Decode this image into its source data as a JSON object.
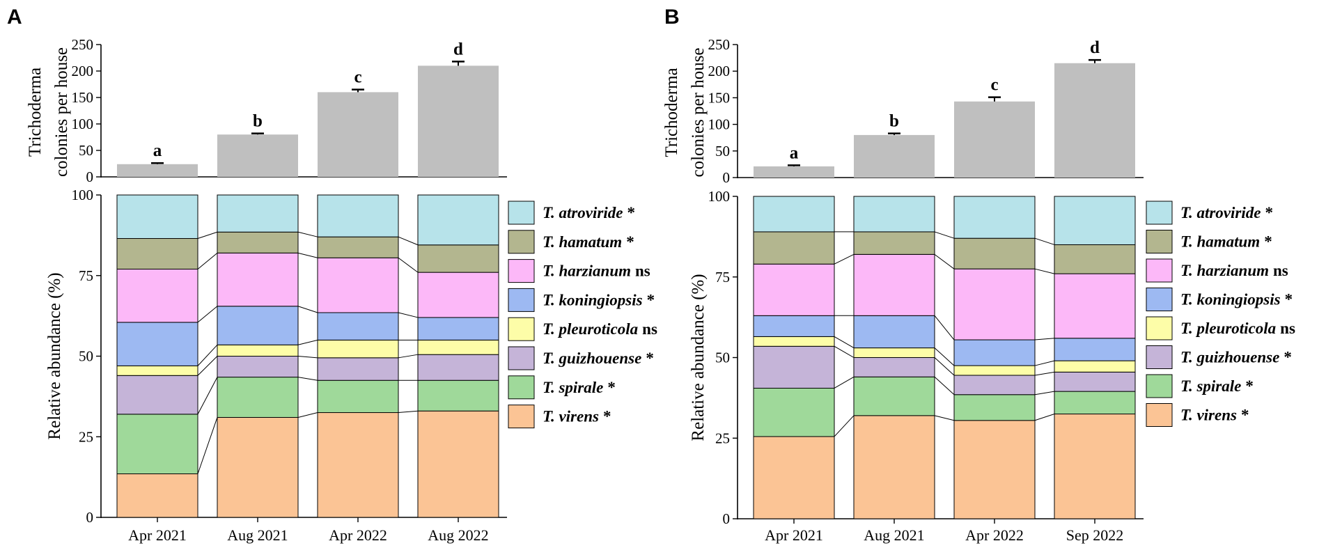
{
  "colors": {
    "bar": "#bfbfbf",
    "T. atroviride": "#b7e3ea",
    "T. hamatum": "#b3b68f",
    "T. harzianum": "#fcb8f8",
    "T. koningiopsis": "#9db9f2",
    "T. pleuroticola": "#fdfda8",
    "T. guizhouense": "#c5b4d8",
    "T. spirale": "#9fd99a",
    "T. virens": "#fbc495"
  },
  "legend": [
    {
      "name": "T. atroviride",
      "sig": "*"
    },
    {
      "name": "T. hamatum",
      "sig": "*"
    },
    {
      "name": "T. harzianum",
      "sig": "ns"
    },
    {
      "name": "T. koningiopsis",
      "sig": "*"
    },
    {
      "name": "T. pleuroticola",
      "sig": "ns"
    },
    {
      "name": "T. guizhouense",
      "sig": "*"
    },
    {
      "name": "T. spirale",
      "sig": "*"
    },
    {
      "name": "T. virens",
      "sig": "*"
    }
  ],
  "chart_data": [
    {
      "panel": "A",
      "type": "bar",
      "ylabel": [
        "Trichoderma",
        "colonies per house"
      ],
      "ylim": [
        0,
        250
      ],
      "yticks": [
        0,
        50,
        100,
        150,
        200,
        250
      ],
      "categories": [
        "Apr 2021",
        "Aug 2021",
        "Apr 2022",
        "Aug 2022"
      ],
      "values": [
        24,
        80,
        160,
        210
      ],
      "errors": [
        2,
        2,
        5,
        8
      ],
      "letters": [
        "a",
        "b",
        "c",
        "d"
      ]
    },
    {
      "panel": "A",
      "type": "stacked-bar",
      "ylabel": "Relative abundance (%)",
      "ylim": [
        0,
        100
      ],
      "yticks": [
        0,
        25,
        50,
        75,
        100
      ],
      "categories": [
        "Apr 2021",
        "Aug 2021",
        "Apr 2022",
        "Aug 2022"
      ],
      "series": [
        {
          "name": "T. virens",
          "values": [
            13.5,
            31,
            32.5,
            33
          ]
        },
        {
          "name": "T. spirale",
          "values": [
            18.5,
            12.5,
            10,
            9.5
          ]
        },
        {
          "name": "T. guizhouense",
          "values": [
            12,
            6.5,
            7,
            8
          ]
        },
        {
          "name": "T. pleuroticola",
          "values": [
            3,
            3.5,
            5.5,
            4.5
          ]
        },
        {
          "name": "T. koningiopsis",
          "values": [
            13.5,
            12,
            8.5,
            7
          ]
        },
        {
          "name": "T. harzianum",
          "values": [
            16.5,
            16.5,
            17,
            14
          ]
        },
        {
          "name": "T. hamatum",
          "values": [
            9.5,
            6.5,
            6.5,
            8.5
          ]
        },
        {
          "name": "T. atroviride",
          "values": [
            13.5,
            11.5,
            13,
            15.5
          ]
        }
      ]
    },
    {
      "panel": "B",
      "type": "bar",
      "ylabel": [
        "Trichoderma",
        "colonies per house"
      ],
      "ylim": [
        0,
        250
      ],
      "yticks": [
        0,
        50,
        100,
        150,
        200,
        250
      ],
      "categories": [
        "Apr 2021",
        "Aug 2021",
        "Apr 2022",
        "Sep 2022"
      ],
      "values": [
        21,
        80,
        143,
        215
      ],
      "errors": [
        2,
        3,
        8,
        6
      ],
      "letters": [
        "a",
        "b",
        "c",
        "d"
      ]
    },
    {
      "panel": "B",
      "type": "stacked-bar",
      "ylabel": "Relative abundance (%)",
      "ylim": [
        0,
        100
      ],
      "yticks": [
        0,
        25,
        50,
        75,
        100
      ],
      "categories": [
        "Apr 2021",
        "Aug 2021",
        "Apr 2022",
        "Sep 2022"
      ],
      "series": [
        {
          "name": "T. virens",
          "values": [
            25.5,
            32,
            30.5,
            32.5
          ]
        },
        {
          "name": "T. spirale",
          "values": [
            15,
            12,
            8,
            7
          ]
        },
        {
          "name": "T. guizhouense",
          "values": [
            13,
            6,
            6,
            6
          ]
        },
        {
          "name": "T. pleuroticola",
          "values": [
            3,
            3,
            3,
            3.5
          ]
        },
        {
          "name": "T. koningiopsis",
          "values": [
            6.5,
            10,
            8,
            7
          ]
        },
        {
          "name": "T. harzianum",
          "values": [
            16,
            19,
            22,
            20
          ]
        },
        {
          "name": "T. hamatum",
          "values": [
            10,
            7,
            9.5,
            9
          ]
        },
        {
          "name": "T. atroviride",
          "values": [
            11,
            11,
            13,
            15
          ]
        }
      ]
    }
  ]
}
